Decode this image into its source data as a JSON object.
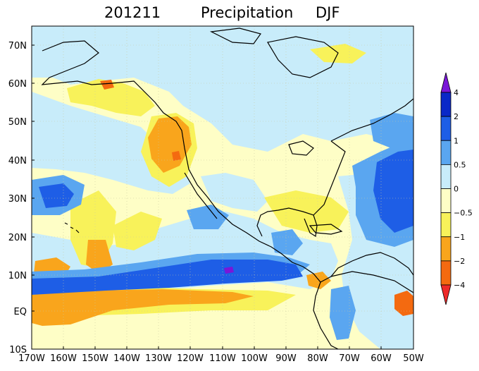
{
  "title": {
    "date": "201211",
    "field": "Precipitation",
    "season": "DJF"
  },
  "map": {
    "lat_labels": [
      "70N",
      "60N",
      "50N",
      "40N",
      "30N",
      "20N",
      "10N",
      "EQ",
      "10S"
    ],
    "lon_labels": [
      "170W",
      "160W",
      "150W",
      "140W",
      "130W",
      "120W",
      "110W",
      "100W",
      "90W",
      "80W",
      "70W",
      "60W",
      "50W"
    ],
    "colors": {
      "background": "#fefec6",
      "light_blue": "#c8ecfa",
      "med_blue": "#5aa6f0",
      "blue": "#1e5ee6",
      "dark_blue": "#0a28c8",
      "purple": "#7a16d8",
      "yellow": "#f8f25a",
      "orange": "#f9a51c",
      "dark_orange": "#f46a10",
      "red": "#ee2a2a",
      "coast": "#000000",
      "grid": "#c8c8a0"
    }
  },
  "colorbar": {
    "labels": [
      "4",
      "2",
      "1",
      "0.5",
      "0",
      "−0.5",
      "−1",
      "−2",
      "−4"
    ],
    "colors": [
      "#7a16d8",
      "#0a28c8",
      "#1e5ee6",
      "#5aa6f0",
      "#c8ecfa",
      "#fefec6",
      "#f8f25a",
      "#f9a51c",
      "#f46a10",
      "#ee2a2a"
    ]
  }
}
